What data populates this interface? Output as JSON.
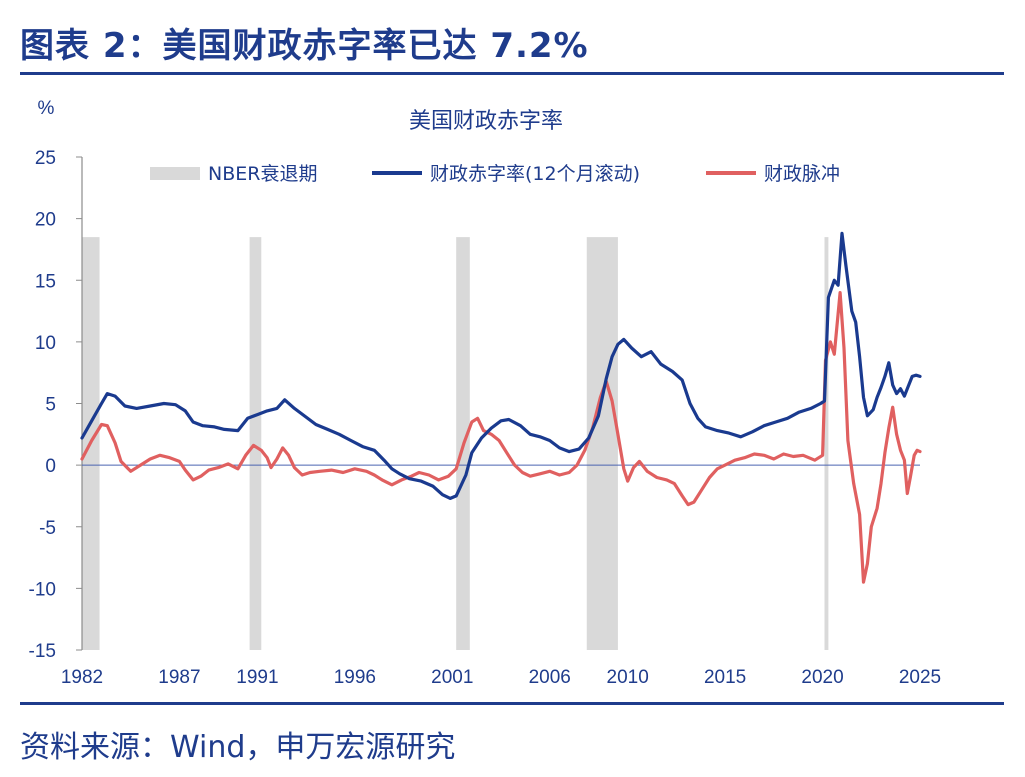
{
  "figure_title": "图表 2：美国财政赤字率已达 7.2%",
  "source_note": "资料来源：Wind，申万宏源研究",
  "chart_data": {
    "type": "line",
    "title": "美国财政赤字率",
    "ylabel": "%",
    "xlabel": "",
    "ylim": [
      -15,
      25
    ],
    "xlim": [
      1982,
      2025
    ],
    "y_ticks": [
      25,
      20,
      15,
      10,
      5,
      0,
      -5,
      -10,
      -15
    ],
    "x_ticks": [
      1982,
      1987,
      1991,
      1996,
      2001,
      2006,
      2010,
      2015,
      2020,
      2025
    ],
    "x_tick_labels": [
      "1982",
      "1987",
      "1991",
      "1996",
      "2001",
      "2006",
      "2010",
      "2015",
      "2020",
      "2025"
    ],
    "grid": false,
    "legend_position": "top",
    "recessions": {
      "name": "NBER衰退期",
      "color": "#d9d9d9",
      "top": 18.5,
      "periods": [
        [
          1982.0,
          1982.9
        ],
        [
          1990.6,
          1991.2
        ],
        [
          2001.2,
          2001.9
        ],
        [
          2007.9,
          2009.5
        ],
        [
          2020.1,
          2020.3
        ]
      ]
    },
    "series": [
      {
        "name": "财政赤字率(12个月滚动)",
        "color": "#1a3a8f",
        "points": [
          [
            1982.0,
            2.2
          ],
          [
            1982.5,
            3.6
          ],
          [
            1983.0,
            5.0
          ],
          [
            1983.3,
            5.8
          ],
          [
            1983.7,
            5.6
          ],
          [
            1984.2,
            4.8
          ],
          [
            1984.8,
            4.6
          ],
          [
            1985.5,
            4.8
          ],
          [
            1986.2,
            5.0
          ],
          [
            1986.8,
            4.9
          ],
          [
            1987.3,
            4.4
          ],
          [
            1987.7,
            3.5
          ],
          [
            1988.2,
            3.2
          ],
          [
            1988.8,
            3.1
          ],
          [
            1989.3,
            2.9
          ],
          [
            1990.0,
            2.8
          ],
          [
            1990.5,
            3.8
          ],
          [
            1991.0,
            4.1
          ],
          [
            1991.5,
            4.4
          ],
          [
            1992.0,
            4.6
          ],
          [
            1992.4,
            5.3
          ],
          [
            1992.9,
            4.6
          ],
          [
            1993.5,
            3.9
          ],
          [
            1994.0,
            3.3
          ],
          [
            1994.6,
            2.9
          ],
          [
            1995.2,
            2.5
          ],
          [
            1995.8,
            2.0
          ],
          [
            1996.4,
            1.5
          ],
          [
            1997.0,
            1.2
          ],
          [
            1997.5,
            0.4
          ],
          [
            1997.9,
            -0.3
          ],
          [
            1998.3,
            -0.7
          ],
          [
            1998.8,
            -1.1
          ],
          [
            1999.4,
            -1.3
          ],
          [
            2000.0,
            -1.7
          ],
          [
            2000.5,
            -2.4
          ],
          [
            2000.9,
            -2.7
          ],
          [
            2001.2,
            -2.5
          ],
          [
            2001.7,
            -0.8
          ],
          [
            2002.0,
            1.0
          ],
          [
            2002.5,
            2.2
          ],
          [
            2003.0,
            3.0
          ],
          [
            2003.5,
            3.6
          ],
          [
            2003.9,
            3.7
          ],
          [
            2004.5,
            3.2
          ],
          [
            2005.0,
            2.5
          ],
          [
            2005.5,
            2.3
          ],
          [
            2006.0,
            2.0
          ],
          [
            2006.5,
            1.4
          ],
          [
            2007.0,
            1.1
          ],
          [
            2007.5,
            1.3
          ],
          [
            2008.0,
            2.2
          ],
          [
            2008.5,
            4.0
          ],
          [
            2008.9,
            7.0
          ],
          [
            2009.2,
            8.8
          ],
          [
            2009.5,
            9.8
          ],
          [
            2009.8,
            10.2
          ],
          [
            2010.2,
            9.5
          ],
          [
            2010.7,
            8.8
          ],
          [
            2011.2,
            9.2
          ],
          [
            2011.7,
            8.2
          ],
          [
            2012.3,
            7.6
          ],
          [
            2012.8,
            6.9
          ],
          [
            2013.2,
            5.0
          ],
          [
            2013.6,
            3.8
          ],
          [
            2014.0,
            3.1
          ],
          [
            2014.6,
            2.8
          ],
          [
            2015.2,
            2.6
          ],
          [
            2015.8,
            2.3
          ],
          [
            2016.4,
            2.7
          ],
          [
            2017.0,
            3.2
          ],
          [
            2017.6,
            3.5
          ],
          [
            2018.2,
            3.8
          ],
          [
            2018.8,
            4.3
          ],
          [
            2019.4,
            4.6
          ],
          [
            2019.9,
            5.0
          ],
          [
            2020.1,
            5.2
          ],
          [
            2020.3,
            13.6
          ],
          [
            2020.6,
            15.0
          ],
          [
            2020.8,
            14.6
          ],
          [
            2021.0,
            18.8
          ],
          [
            2021.2,
            16.2
          ],
          [
            2021.5,
            12.5
          ],
          [
            2021.7,
            11.6
          ],
          [
            2021.9,
            8.8
          ],
          [
            2022.1,
            5.5
          ],
          [
            2022.3,
            4.0
          ],
          [
            2022.6,
            4.5
          ],
          [
            2022.8,
            5.5
          ],
          [
            2023.0,
            6.3
          ],
          [
            2023.2,
            7.2
          ],
          [
            2023.4,
            8.3
          ],
          [
            2023.6,
            6.5
          ],
          [
            2023.8,
            5.8
          ],
          [
            2024.0,
            6.2
          ],
          [
            2024.2,
            5.6
          ],
          [
            2024.4,
            6.4
          ],
          [
            2024.6,
            7.2
          ],
          [
            2024.8,
            7.3
          ],
          [
            2025.0,
            7.2
          ]
        ]
      },
      {
        "name": "财政脉冲",
        "color": "#e06060",
        "points": [
          [
            1982.0,
            0.5
          ],
          [
            1982.5,
            2.0
          ],
          [
            1983.0,
            3.3
          ],
          [
            1983.3,
            3.2
          ],
          [
            1983.7,
            1.8
          ],
          [
            1984.0,
            0.3
          ],
          [
            1984.5,
            -0.5
          ],
          [
            1985.0,
            0.0
          ],
          [
            1985.5,
            0.5
          ],
          [
            1986.0,
            0.8
          ],
          [
            1986.5,
            0.6
          ],
          [
            1987.0,
            0.3
          ],
          [
            1987.3,
            -0.4
          ],
          [
            1987.7,
            -1.2
          ],
          [
            1988.1,
            -0.9
          ],
          [
            1988.5,
            -0.4
          ],
          [
            1989.0,
            -0.2
          ],
          [
            1989.5,
            0.1
          ],
          [
            1990.0,
            -0.3
          ],
          [
            1990.4,
            0.8
          ],
          [
            1990.8,
            1.6
          ],
          [
            1991.2,
            1.2
          ],
          [
            1991.5,
            0.6
          ],
          [
            1991.7,
            -0.2
          ],
          [
            1992.0,
            0.5
          ],
          [
            1992.3,
            1.4
          ],
          [
            1992.6,
            0.8
          ],
          [
            1992.9,
            -0.2
          ],
          [
            1993.3,
            -0.8
          ],
          [
            1993.7,
            -0.6
          ],
          [
            1994.2,
            -0.5
          ],
          [
            1994.8,
            -0.4
          ],
          [
            1995.4,
            -0.6
          ],
          [
            1996.0,
            -0.3
          ],
          [
            1996.6,
            -0.5
          ],
          [
            1997.0,
            -0.8
          ],
          [
            1997.4,
            -1.2
          ],
          [
            1997.9,
            -1.6
          ],
          [
            1998.4,
            -1.2
          ],
          [
            1998.9,
            -0.9
          ],
          [
            1999.3,
            -0.6
          ],
          [
            1999.8,
            -0.8
          ],
          [
            2000.3,
            -1.2
          ],
          [
            2000.8,
            -0.9
          ],
          [
            2001.2,
            -0.3
          ],
          [
            2001.6,
            1.8
          ],
          [
            2002.0,
            3.5
          ],
          [
            2002.3,
            3.8
          ],
          [
            2002.6,
            2.8
          ],
          [
            2003.0,
            2.5
          ],
          [
            2003.4,
            2.0
          ],
          [
            2003.8,
            1.0
          ],
          [
            2004.2,
            0.0
          ],
          [
            2004.6,
            -0.6
          ],
          [
            2005.0,
            -0.9
          ],
          [
            2005.5,
            -0.7
          ],
          [
            2006.0,
            -0.5
          ],
          [
            2006.5,
            -0.8
          ],
          [
            2007.0,
            -0.6
          ],
          [
            2007.4,
            0.0
          ],
          [
            2007.8,
            1.2
          ],
          [
            2008.2,
            3.0
          ],
          [
            2008.6,
            5.5
          ],
          [
            2008.9,
            6.8
          ],
          [
            2009.2,
            5.2
          ],
          [
            2009.5,
            2.5
          ],
          [
            2009.8,
            -0.3
          ],
          [
            2010.0,
            -1.3
          ],
          [
            2010.3,
            -0.2
          ],
          [
            2010.6,
            0.3
          ],
          [
            2011.0,
            -0.5
          ],
          [
            2011.5,
            -1.0
          ],
          [
            2012.0,
            -1.2
          ],
          [
            2012.4,
            -1.5
          ],
          [
            2012.8,
            -2.5
          ],
          [
            2013.1,
            -3.2
          ],
          [
            2013.4,
            -3.0
          ],
          [
            2013.8,
            -2.0
          ],
          [
            2014.2,
            -1.0
          ],
          [
            2014.6,
            -0.3
          ],
          [
            2015.0,
            0.0
          ],
          [
            2015.5,
            0.4
          ],
          [
            2016.0,
            0.6
          ],
          [
            2016.5,
            0.9
          ],
          [
            2017.0,
            0.8
          ],
          [
            2017.5,
            0.5
          ],
          [
            2018.0,
            0.9
          ],
          [
            2018.5,
            0.7
          ],
          [
            2019.0,
            0.8
          ],
          [
            2019.6,
            0.4
          ],
          [
            2020.0,
            0.8
          ],
          [
            2020.15,
            8.5
          ],
          [
            2020.4,
            10.0
          ],
          [
            2020.6,
            9.0
          ],
          [
            2020.9,
            14.0
          ],
          [
            2021.1,
            9.5
          ],
          [
            2021.3,
            2.0
          ],
          [
            2021.6,
            -1.5
          ],
          [
            2021.9,
            -4.0
          ],
          [
            2022.1,
            -9.5
          ],
          [
            2022.3,
            -8.0
          ],
          [
            2022.5,
            -5.0
          ],
          [
            2022.8,
            -3.5
          ],
          [
            2023.0,
            -1.5
          ],
          [
            2023.2,
            1.0
          ],
          [
            2023.4,
            3.0
          ],
          [
            2023.6,
            4.7
          ],
          [
            2023.8,
            2.5
          ],
          [
            2024.0,
            1.2
          ],
          [
            2024.2,
            0.4
          ],
          [
            2024.35,
            -2.3
          ],
          [
            2024.5,
            -1.0
          ],
          [
            2024.7,
            0.8
          ],
          [
            2024.85,
            1.2
          ],
          [
            2025.0,
            1.1
          ]
        ]
      }
    ]
  }
}
